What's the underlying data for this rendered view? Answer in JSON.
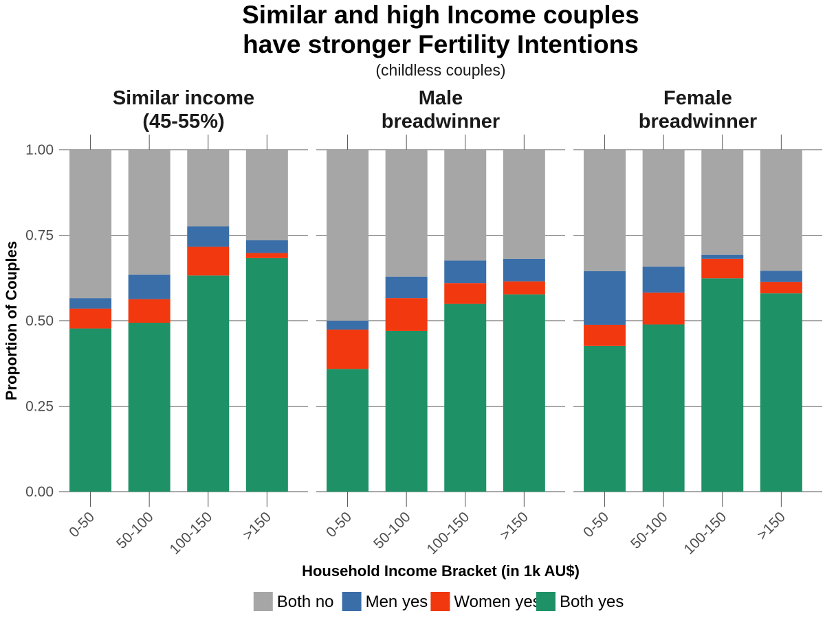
{
  "title_line1": "Similar and high Income couples",
  "title_line2": "have stronger Fertility Intentions",
  "subtitle": "(childless couples)",
  "chart_data": {
    "type": "bar",
    "stacked": true,
    "xlabel": "Household Income Bracket (in 1k AU$)",
    "ylabel": "Proportion of Couples",
    "ylim": [
      0,
      1
    ],
    "yticks": [
      "0.00",
      "0.25",
      "0.50",
      "0.75",
      "1.00"
    ],
    "categories": [
      "0-50",
      "50-100",
      "100-150",
      ">150"
    ],
    "legend_position": "bottom",
    "series_order": [
      "Both yes",
      "Women yes",
      "Men yes",
      "Both no"
    ],
    "legend": [
      {
        "name": "Both no",
        "color": "#a6a6a6"
      },
      {
        "name": "Men yes",
        "color": "#3a6ea8"
      },
      {
        "name": "Women yes",
        "color": "#f2380f"
      },
      {
        "name": "Both yes",
        "color": "#1e9166"
      }
    ],
    "facets": [
      {
        "title_lines": [
          "Similar income",
          "(45-55%)"
        ],
        "series": [
          {
            "name": "Both yes",
            "values": [
              0.477,
              0.494,
              0.632,
              0.683
            ]
          },
          {
            "name": "Women yes",
            "values": [
              0.058,
              0.069,
              0.084,
              0.015
            ]
          },
          {
            "name": "Men yes",
            "values": [
              0.031,
              0.072,
              0.06,
              0.037
            ]
          },
          {
            "name": "Both no",
            "values": [
              0.434,
              0.365,
              0.224,
              0.265
            ]
          }
        ]
      },
      {
        "title_lines": [
          "Male",
          "breadwinner"
        ],
        "series": [
          {
            "name": "Both yes",
            "values": [
              0.359,
              0.47,
              0.549,
              0.577
            ]
          },
          {
            "name": "Women yes",
            "values": [
              0.115,
              0.096,
              0.061,
              0.038
            ]
          },
          {
            "name": "Men yes",
            "values": [
              0.026,
              0.063,
              0.066,
              0.066
            ]
          },
          {
            "name": "Both no",
            "values": [
              0.5,
              0.371,
              0.324,
              0.319
            ]
          }
        ]
      },
      {
        "title_lines": [
          "Female",
          "breadwinner"
        ],
        "series": [
          {
            "name": "Both yes",
            "values": [
              0.426,
              0.489,
              0.624,
              0.58
            ]
          },
          {
            "name": "Women yes",
            "values": [
              0.062,
              0.093,
              0.057,
              0.033
            ]
          },
          {
            "name": "Men yes",
            "values": [
              0.157,
              0.076,
              0.012,
              0.033
            ]
          },
          {
            "name": "Both no",
            "values": [
              0.355,
              0.342,
              0.307,
              0.354
            ]
          }
        ]
      }
    ]
  }
}
